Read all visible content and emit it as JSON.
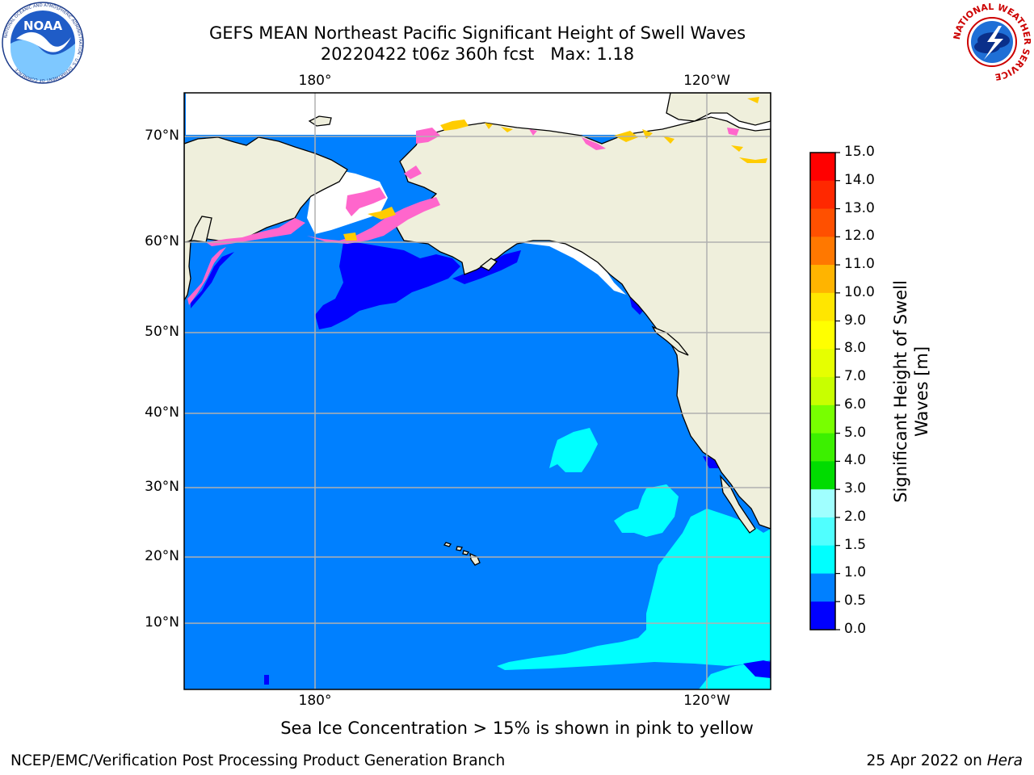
{
  "header": {
    "title_line1": "GEFS MEAN Northeast Pacific Significant Height of Swell Waves",
    "title_line2": "20220422 t06z 360h fcst   Max: 1.18"
  },
  "logos": {
    "left": {
      "icon": "noaa-logo",
      "text": "NOAA",
      "ring_text": "NATIONAL OCEANIC AND ATMOSPHERIC ADMINISTRATION · U.S. DEPARTMENT OF COMMERCE"
    },
    "right": {
      "icon": "nws-logo",
      "ring_text": "NATIONAL WEATHER SERVICE"
    }
  },
  "map": {
    "lon_labels_top": [
      "180°",
      "120°W"
    ],
    "lon_labels_bottom": [
      "180°",
      "120°W"
    ],
    "lat_labels": [
      "70°N",
      "60°N",
      "50°N",
      "40°N",
      "30°N",
      "20°N",
      "10°N"
    ],
    "colors": {
      "land": "#efefdc",
      "ocean_0_5_1_0": "#0080ff",
      "ocean_0_0_0_5": "#0000ff",
      "ocean_1_0_1_5": "#00ffff",
      "grid": "#b0b0b0",
      "ice_pink": "#ff66cc",
      "ice_yellow": "#ffcc00"
    }
  },
  "colorbar": {
    "label": "Significant Height of Swell\nWaves [m]",
    "ticks": [
      "15.0",
      "14.0",
      "13.0",
      "12.0",
      "11.0",
      "10.0",
      "9.0",
      "8.0",
      "7.0",
      "6.0",
      "5.0",
      "4.0",
      "3.0",
      "2.0",
      "1.5",
      "1.0",
      "0.5",
      "0.0"
    ],
    "colors_top_to_bottom": [
      "#ff0000",
      "#ff2800",
      "#ff5000",
      "#ff7800",
      "#ff9600",
      "#ffb400",
      "#ffe600",
      "#ffff00",
      "#e6ff00",
      "#c8ff00",
      "#78ff00",
      "#3cf000",
      "#00dc00",
      "#50f078",
      "#a0ffff",
      "#50ffff",
      "#00ffff",
      "#0080ff",
      "#0000ff"
    ]
  },
  "notes": {
    "sea_ice": "Sea Ice Concentration > 15% is shown in pink to yellow"
  },
  "footer": {
    "left": "NCEP/EMC/Verification Post Processing Product Generation Branch",
    "right_date": "25 Apr 2022 on ",
    "right_host": "Hera"
  }
}
